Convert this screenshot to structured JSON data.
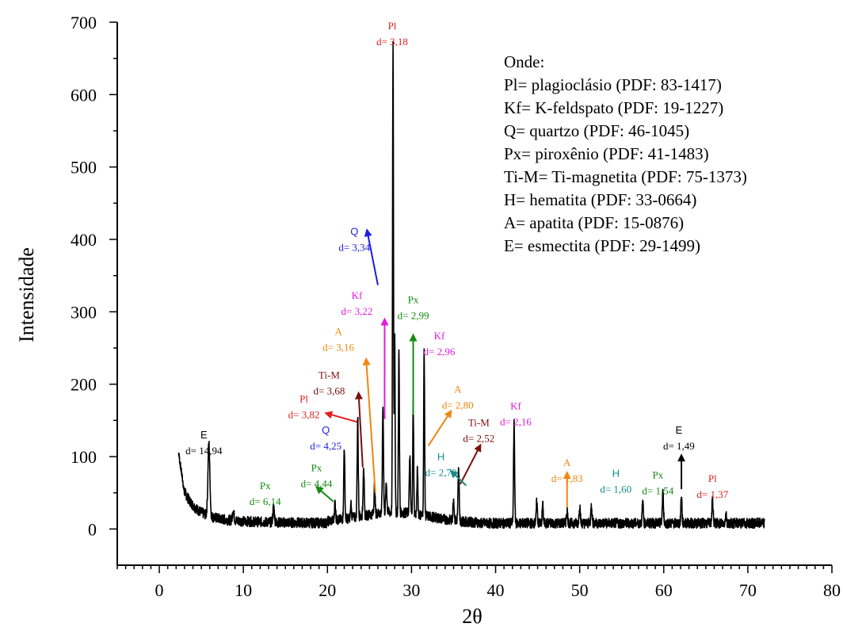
{
  "chart_data": {
    "type": "line",
    "xlabel": "2θ",
    "ylabel": "Intensidade",
    "xlim": [
      -5,
      80
    ],
    "ylim": [
      -50,
      700
    ],
    "x_ticks": [
      0,
      10,
      20,
      30,
      40,
      50,
      60,
      70,
      80
    ],
    "y_ticks": [
      0,
      100,
      200,
      300,
      400,
      500,
      600,
      700
    ],
    "series": [
      {
        "color": "#000000",
        "peaks": [
          {
            "x": 5.9,
            "y": 100,
            "w": 0.16
          },
          {
            "x": 8.8,
            "y": 15,
            "w": 0.12
          },
          {
            "x": 13.6,
            "y": 22,
            "w": 0.12
          },
          {
            "x": 20.9,
            "y": 25,
            "w": 0.1
          },
          {
            "x": 22.0,
            "y": 100,
            "w": 0.09
          },
          {
            "x": 22.8,
            "y": 20,
            "w": 0.08
          },
          {
            "x": 23.6,
            "y": 138,
            "w": 0.09
          },
          {
            "x": 24.3,
            "y": 70,
            "w": 0.09
          },
          {
            "x": 25.6,
            "y": 40,
            "w": 0.09
          },
          {
            "x": 26.6,
            "y": 148,
            "w": 0.09
          },
          {
            "x": 27.0,
            "y": 40,
            "w": 0.1
          },
          {
            "x": 27.8,
            "y": 645,
            "w": 0.08
          },
          {
            "x": 28.0,
            "y": 250,
            "w": 0.07
          },
          {
            "x": 28.5,
            "y": 230,
            "w": 0.08
          },
          {
            "x": 29.8,
            "y": 80,
            "w": 0.09
          },
          {
            "x": 30.2,
            "y": 150,
            "w": 0.08
          },
          {
            "x": 30.7,
            "y": 60,
            "w": 0.08
          },
          {
            "x": 31.5,
            "y": 225,
            "w": 0.08
          },
          {
            "x": 35.0,
            "y": 30,
            "w": 0.1
          },
          {
            "x": 35.6,
            "y": 70,
            "w": 0.1
          },
          {
            "x": 42.2,
            "y": 140,
            "w": 0.09
          },
          {
            "x": 44.9,
            "y": 30,
            "w": 0.09
          },
          {
            "x": 45.6,
            "y": 25,
            "w": 0.09
          },
          {
            "x": 48.5,
            "y": 18,
            "w": 0.1
          },
          {
            "x": 50.0,
            "y": 25,
            "w": 0.1
          },
          {
            "x": 51.4,
            "y": 25,
            "w": 0.1
          },
          {
            "x": 57.5,
            "y": 28,
            "w": 0.1
          },
          {
            "x": 59.9,
            "y": 42,
            "w": 0.1
          },
          {
            "x": 62.1,
            "y": 40,
            "w": 0.09
          },
          {
            "x": 65.8,
            "y": 32,
            "w": 0.1
          },
          {
            "x": 67.4,
            "y": 12,
            "w": 0.1
          }
        ],
        "x_range": [
          2.3,
          72
        ]
      }
    ],
    "annotations": [
      {
        "label": "Pl",
        "d": "d= 3,18",
        "color": "#e51c1c",
        "x": 27.7,
        "y": 690,
        "font": "serif"
      },
      {
        "label": "Q",
        "d": "d= 3,34",
        "color": "#1c1ce5",
        "x": 23.2,
        "y": 406,
        "font": "sans",
        "arrow": [
          [
            26.0,
            337
          ],
          [
            24.7,
            413
          ]
        ]
      },
      {
        "label": "Kf",
        "d": "d= 3,22",
        "color": "#e01ce0",
        "x": 23.5,
        "y": 318,
        "font": "serif",
        "arrow": [
          [
            26.8,
            152
          ],
          [
            26.8,
            290
          ]
        ]
      },
      {
        "label": "Px",
        "d": "d= 2,99",
        "color": "#138a13",
        "x": 30.2,
        "y": 312,
        "font": "serif",
        "arrow": [
          [
            30.2,
            158
          ],
          [
            30.2,
            268
          ]
        ]
      },
      {
        "label": "Kf",
        "d": "d= 2,96",
        "color": "#e01ce0",
        "x": 33.3,
        "y": 262,
        "font": "serif"
      },
      {
        "label": "A",
        "d": "d= 3,16",
        "color": "#f0860f",
        "x": 21.3,
        "y": 268,
        "font": "serif",
        "arrow": [
          [
            25.7,
            50
          ],
          [
            24.6,
            235
          ]
        ]
      },
      {
        "label": "Ti-M",
        "d": "d= 3,68",
        "color": "#7a0e0e",
        "x": 20.2,
        "y": 208,
        "font": "serif",
        "arrow": [
          [
            24.2,
            85
          ],
          [
            23.7,
            188
          ]
        ]
      },
      {
        "label": "Pl",
        "d": "d= 3,82",
        "color": "#e51c1c",
        "x": 17.2,
        "y": 175,
        "font": "serif",
        "arrow": [
          [
            23.5,
            148
          ],
          [
            19.8,
            160
          ]
        ]
      },
      {
        "label": "A",
        "d": "d= 2,80",
        "color": "#f0860f",
        "x": 35.5,
        "y": 188,
        "font": "serif",
        "arrow": [
          [
            32.0,
            115
          ],
          [
            34.7,
            163
          ]
        ]
      },
      {
        "label": "Ti-M",
        "d": "d= 2,52",
        "color": "#7a0e0e",
        "x": 38.0,
        "y": 142,
        "font": "serif",
        "arrow": [
          [
            35.8,
            62
          ],
          [
            38.2,
            116
          ]
        ]
      },
      {
        "label": "H",
        "d": "d= 2,70",
        "color": "#138a8a",
        "x": 33.5,
        "y": 95,
        "font": "sans",
        "arrow": [
          [
            36.5,
            60
          ],
          [
            34.7,
            80
          ]
        ]
      },
      {
        "label": "Kf",
        "d": "d= 2,16",
        "color": "#e01ce0",
        "x": 42.4,
        "y": 165,
        "font": "serif"
      },
      {
        "label": "Q",
        "d": "d= 4,25",
        "color": "#1c1ce5",
        "x": 19.8,
        "y": 132,
        "font": "sans"
      },
      {
        "label": "Px",
        "d": "d= 4,44",
        "color": "#138a13",
        "x": 18.7,
        "y": 80,
        "font": "serif",
        "arrow": [
          [
            20.7,
            38
          ],
          [
            18.7,
            58
          ]
        ]
      },
      {
        "label": "Px",
        "d": "d= 6,14",
        "color": "#138a13",
        "x": 12.6,
        "y": 55,
        "font": "serif"
      },
      {
        "label": "E",
        "d": "d= 14,94",
        "color": "#000000",
        "x": 5.3,
        "y": 125,
        "font": "sans"
      },
      {
        "label": "A",
        "d": "d= 1,83",
        "color": "#f0860f",
        "x": 48.5,
        "y": 87,
        "font": "serif",
        "arrow": [
          [
            48.5,
            30
          ],
          [
            48.5,
            78
          ]
        ]
      },
      {
        "label": "H",
        "d": "d= 1,60",
        "color": "#138a8a",
        "x": 54.3,
        "y": 72,
        "font": "sans"
      },
      {
        "label": "Px",
        "d": "d= 1,54",
        "color": "#138a13",
        "x": 59.3,
        "y": 70,
        "font": "serif"
      },
      {
        "label": "Pl",
        "d": "d= 1,37",
        "color": "#e51c1c",
        "x": 65.8,
        "y": 65,
        "font": "serif"
      },
      {
        "label": "E",
        "d": "d= 1,49",
        "color": "#000000",
        "x": 61.8,
        "y": 132,
        "font": "sans",
        "arrow": [
          [
            62.1,
            55
          ],
          [
            62.1,
            102
          ]
        ]
      }
    ],
    "legend": {
      "placement": "top-right",
      "lines": [
        "Onde:",
        "Pl= plagioclásio (PDF: 83-1417)",
        "Kf= K-feldspato (PDF: 19-1227)",
        "Q= quartzo (PDF: 46-1045)",
        "Px= piroxênio (PDF: 41-1483)",
        "Ti-M= Ti-magnetita (PDF: 75-1373)",
        "H= hematita (PDF: 33-0664)",
        "A= apatita (PDF: 15-0876)",
        "E= esmectita (PDF: 29-1499)"
      ]
    }
  }
}
